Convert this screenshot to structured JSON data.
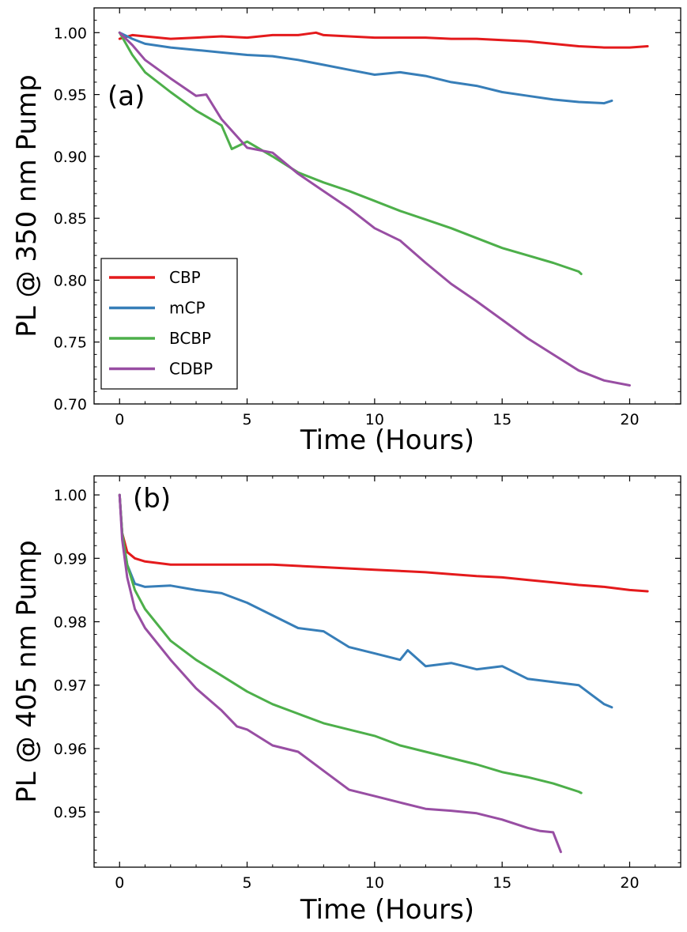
{
  "colors": {
    "CBP": "#e41a1c",
    "mCP": "#377eb8",
    "BCBP": "#4daf4a",
    "CDBP": "#984ea3"
  },
  "chart_data": [
    {
      "type": "line",
      "panel_label": "(a)",
      "xlabel": "Time (Hours)",
      "ylabel": "PL @ 350 nm Pump",
      "xlim": [
        -1,
        22
      ],
      "ylim": [
        0.7,
        1.02
      ],
      "xticks": [
        0,
        5,
        10,
        15,
        20
      ],
      "xtick_labels": [
        "0",
        "5",
        "10",
        "15",
        "20"
      ],
      "yticks": [
        0.7,
        0.75,
        0.8,
        0.85,
        0.9,
        0.95,
        1.0
      ],
      "ytick_labels": [
        "0.70",
        "0.75",
        "0.80",
        "0.85",
        "0.90",
        "0.95",
        "1.00"
      ],
      "grid": false,
      "legend": {
        "placement": "lower-left",
        "entries": [
          "CBP",
          "mCP",
          "BCBP",
          "CDBP"
        ]
      },
      "series": [
        {
          "name": "CBP",
          "x": [
            0,
            0.5,
            1,
            2,
            3,
            4,
            5,
            6,
            7,
            7.7,
            8,
            9,
            10,
            11,
            12,
            13,
            14,
            15,
            16,
            17,
            18,
            19,
            20,
            20.7
          ],
          "y": [
            0.995,
            0.998,
            0.997,
            0.995,
            0.996,
            0.997,
            0.996,
            0.998,
            0.998,
            1.0,
            0.998,
            0.997,
            0.996,
            0.996,
            0.996,
            0.995,
            0.995,
            0.994,
            0.993,
            0.991,
            0.989,
            0.988,
            0.988,
            0.989
          ]
        },
        {
          "name": "mCP",
          "x": [
            0,
            0.5,
            1,
            2,
            3,
            4,
            5,
            6,
            7,
            8,
            9,
            10,
            11,
            12,
            13,
            14,
            15,
            16,
            17,
            18,
            19,
            19.3
          ],
          "y": [
            1.0,
            0.995,
            0.991,
            0.988,
            0.986,
            0.984,
            0.982,
            0.981,
            0.978,
            0.974,
            0.97,
            0.966,
            0.968,
            0.965,
            0.96,
            0.957,
            0.952,
            0.949,
            0.946,
            0.944,
            0.943,
            0.945
          ]
        },
        {
          "name": "BCBP",
          "x": [
            0,
            0.5,
            1,
            2,
            3,
            4,
            4.4,
            5,
            6,
            7,
            8,
            9,
            10,
            11,
            12,
            13,
            14,
            15,
            16,
            17,
            18,
            18.1
          ],
          "y": [
            1.0,
            0.982,
            0.968,
            0.952,
            0.937,
            0.925,
            0.906,
            0.912,
            0.9,
            0.887,
            0.879,
            0.872,
            0.864,
            0.856,
            0.849,
            0.842,
            0.834,
            0.826,
            0.82,
            0.814,
            0.807,
            0.805
          ]
        },
        {
          "name": "CDBP",
          "x": [
            0,
            0.5,
            1,
            2,
            3,
            3.4,
            4,
            5,
            6,
            7,
            8,
            9,
            10,
            11,
            12,
            13,
            14,
            15,
            16,
            17,
            18,
            19,
            20
          ],
          "y": [
            1.0,
            0.99,
            0.978,
            0.963,
            0.949,
            0.95,
            0.93,
            0.907,
            0.903,
            0.886,
            0.872,
            0.858,
            0.842,
            0.832,
            0.814,
            0.797,
            0.783,
            0.768,
            0.753,
            0.74,
            0.727,
            0.719,
            0.715
          ]
        }
      ]
    },
    {
      "type": "line",
      "panel_label": "(b)",
      "xlabel": "Time (Hours)",
      "ylabel": "PL @ 405 nm Pump",
      "xlim": [
        -1,
        22
      ],
      "ylim": [
        0.9413,
        1.003
      ],
      "xticks": [
        0,
        5,
        10,
        15,
        20
      ],
      "xtick_labels": [
        "0",
        "5",
        "10",
        "15",
        "20"
      ],
      "yticks": [
        0.95,
        0.96,
        0.97,
        0.98,
        0.99,
        1.0
      ],
      "ytick_labels": [
        "0.95",
        "0.96",
        "0.97",
        "0.98",
        "0.99",
        "1.00"
      ],
      "grid": false,
      "series": [
        {
          "name": "CBP",
          "x": [
            0,
            0.1,
            0.3,
            0.6,
            1,
            2,
            3,
            4,
            5,
            6,
            7,
            8,
            9,
            10,
            11,
            12,
            13,
            14,
            15,
            16,
            17,
            18,
            19,
            20,
            20.7
          ],
          "y": [
            1.0,
            0.994,
            0.991,
            0.99,
            0.9895,
            0.989,
            0.989,
            0.989,
            0.989,
            0.989,
            0.9888,
            0.9886,
            0.9884,
            0.9882,
            0.988,
            0.9878,
            0.9875,
            0.9872,
            0.987,
            0.9866,
            0.9862,
            0.9858,
            0.9855,
            0.985,
            0.9848
          ]
        },
        {
          "name": "mCP",
          "x": [
            0,
            0.1,
            0.3,
            0.6,
            1,
            2,
            3,
            4,
            5,
            6,
            7,
            8,
            9,
            10,
            11,
            11.3,
            12,
            13,
            14,
            15,
            16,
            17,
            18,
            18.5,
            19,
            19.3
          ],
          "y": [
            1.0,
            0.994,
            0.989,
            0.986,
            0.9855,
            0.9857,
            0.985,
            0.9845,
            0.983,
            0.981,
            0.979,
            0.9785,
            0.976,
            0.975,
            0.974,
            0.9755,
            0.973,
            0.9735,
            0.9725,
            0.973,
            0.971,
            0.9705,
            0.97,
            0.9685,
            0.967,
            0.9665
          ]
        },
        {
          "name": "BCBP",
          "x": [
            0,
            0.1,
            0.3,
            0.6,
            1,
            2,
            3,
            4,
            5,
            6,
            7,
            8,
            9,
            10,
            11,
            12,
            13,
            14,
            15,
            16,
            17,
            18,
            18.1
          ],
          "y": [
            1.0,
            0.994,
            0.989,
            0.985,
            0.982,
            0.977,
            0.974,
            0.9715,
            0.969,
            0.967,
            0.9655,
            0.964,
            0.963,
            0.962,
            0.9605,
            0.9595,
            0.9585,
            0.9575,
            0.9563,
            0.9555,
            0.9545,
            0.9532,
            0.953
          ]
        },
        {
          "name": "CDBP",
          "x": [
            0,
            0.1,
            0.3,
            0.6,
            1,
            2,
            3,
            4,
            4.6,
            5,
            6,
            7,
            8,
            9,
            10,
            11,
            12,
            13,
            14,
            15,
            16,
            16.5,
            17,
            17.3
          ],
          "y": [
            1.0,
            0.993,
            0.987,
            0.982,
            0.979,
            0.974,
            0.9695,
            0.966,
            0.9635,
            0.963,
            0.9605,
            0.9595,
            0.9565,
            0.9535,
            0.9525,
            0.9515,
            0.9505,
            0.9502,
            0.9498,
            0.9488,
            0.9475,
            0.947,
            0.9468,
            0.9437
          ]
        }
      ]
    }
  ]
}
